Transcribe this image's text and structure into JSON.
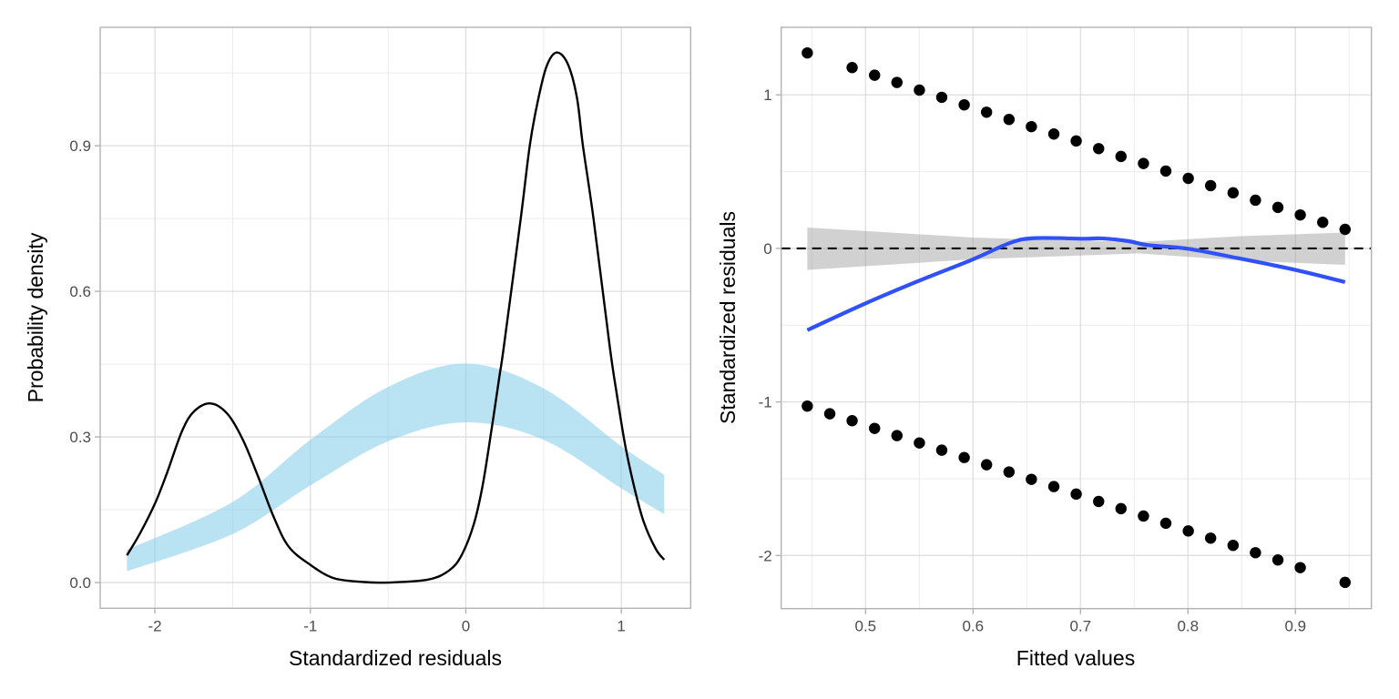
{
  "chart_data": [
    {
      "type": "line",
      "xlabel": "Standardized residuals",
      "ylabel": "Probability density",
      "xlim": [
        -2.352,
        1.446
      ],
      "ylim": [
        -0.053,
        1.144
      ],
      "x_ticks": [
        -2,
        -1,
        0,
        1
      ],
      "x_tick_labels": [
        "-2",
        "-1",
        "0",
        "1"
      ],
      "y_ticks": [
        0.0,
        0.3,
        0.6,
        0.9
      ],
      "y_tick_labels": [
        "0.0",
        "0.3",
        "0.6",
        "0.9"
      ],
      "grid": true,
      "colors": {
        "density": "#000000",
        "band": "#87CEEB"
      },
      "density": {
        "x": [
          -2.18,
          -2.098,
          -2.0,
          -1.923,
          -1.825,
          -1.747,
          -1.64,
          -1.532,
          -1.434,
          -1.337,
          -1.239,
          -1.142,
          -1.005,
          -0.849,
          -0.653,
          -0.5,
          -0.243,
          -0.107,
          -0.028,
          0.05,
          0.108,
          0.167,
          0.216,
          0.245,
          0.353,
          0.411,
          0.46,
          0.518,
          0.583,
          0.655,
          0.714,
          0.753,
          0.821,
          0.925,
          0.968,
          1.026,
          1.085,
          1.144,
          1.222,
          1.276
        ],
        "y": [
          0.056,
          0.1,
          0.1625,
          0.225,
          0.3125,
          0.353,
          0.369,
          0.347,
          0.294,
          0.219,
          0.1375,
          0.075,
          0.0375,
          0.009,
          0.001,
          0.0,
          0.006,
          0.025,
          0.056,
          0.119,
          0.2,
          0.319,
          0.425,
          0.4875,
          0.75,
          0.9,
          0.9875,
          1.0625,
          1.092,
          1.069,
          1.0,
          0.9,
          0.75,
          0.4875,
          0.394,
          0.281,
          0.194,
          0.125,
          0.069,
          0.047
        ]
      },
      "band": {
        "x": [
          -2.18,
          -1.5,
          -1.0,
          -0.5,
          0.0,
          0.5,
          1.0,
          1.276
        ],
        "lower": [
          0.023,
          0.1,
          0.2,
          0.291,
          0.33,
          0.294,
          0.194,
          0.141
        ],
        "upper": [
          0.0675,
          0.166,
          0.294,
          0.403,
          0.451,
          0.4,
          0.281,
          0.222
        ]
      }
    },
    {
      "type": "scatter",
      "xlabel": "Fitted values",
      "ylabel": "Standardized residuals",
      "xlim": [
        0.4215,
        0.9707
      ],
      "ylim": [
        -2.346,
        1.44
      ],
      "x_ticks": [
        0.5,
        0.6,
        0.7,
        0.8,
        0.9
      ],
      "x_tick_labels": [
        "0.5",
        "0.6",
        "0.7",
        "0.8",
        "0.9"
      ],
      "y_ticks": [
        -2,
        -1,
        0,
        1
      ],
      "y_tick_labels": [
        "-2",
        "-1",
        "0",
        "1"
      ],
      "grid": true,
      "reference_line": {
        "y": 0,
        "style": "dashed",
        "color": "#000000"
      },
      "colors": {
        "points": "#000000",
        "smooth": "#3050F8",
        "band": "#cccccc"
      },
      "points": {
        "x": [
          0.4458,
          0.4875,
          0.5084,
          0.5292,
          0.5501,
          0.5709,
          0.5918,
          0.6126,
          0.6335,
          0.6543,
          0.6752,
          0.696,
          0.7169,
          0.7377,
          0.7586,
          0.7794,
          0.8003,
          0.8211,
          0.842,
          0.8628,
          0.8837,
          0.9045,
          0.9254,
          0.9462,
          0.4458,
          0.4667,
          0.4875,
          0.5084,
          0.5292,
          0.5501,
          0.5709,
          0.5918,
          0.6126,
          0.6335,
          0.6543,
          0.6752,
          0.696,
          0.7169,
          0.7377,
          0.7586,
          0.7794,
          0.8003,
          0.8211,
          0.842,
          0.8628,
          0.8837,
          0.9045,
          0.9462
        ],
        "y": [
          1.273,
          1.178,
          1.128,
          1.081,
          1.031,
          0.984,
          0.935,
          0.887,
          0.84,
          0.793,
          0.745,
          0.7,
          0.65,
          0.599,
          0.553,
          0.504,
          0.456,
          0.409,
          0.362,
          0.314,
          0.267,
          0.218,
          0.17,
          0.124,
          -1.027,
          -1.077,
          -1.122,
          -1.172,
          -1.219,
          -1.267,
          -1.314,
          -1.362,
          -1.409,
          -1.456,
          -1.504,
          -1.551,
          -1.6,
          -1.648,
          -1.695,
          -1.743,
          -1.79,
          -1.84,
          -1.887,
          -1.934,
          -1.982,
          -2.029,
          -2.079,
          -2.175
        ]
      },
      "smooth": {
        "x": [
          0.4458,
          0.5,
          0.55,
          0.6,
          0.635,
          0.658,
          0.703,
          0.72,
          0.745,
          0.762,
          0.8,
          0.849,
          0.9,
          0.9462
        ],
        "y": [
          -0.532,
          -0.358,
          -0.21,
          -0.071,
          0.037,
          0.067,
          0.063,
          0.065,
          0.047,
          0.022,
          -0.002,
          -0.067,
          -0.14,
          -0.219
        ]
      },
      "band": {
        "x": [
          0.4458,
          0.6,
          0.7,
          0.754,
          0.85,
          0.9462
        ],
        "lower": [
          -0.14,
          -0.071,
          -0.046,
          -0.032,
          -0.08,
          -0.107
        ],
        "upper": [
          0.136,
          0.071,
          0.05,
          0.042,
          0.08,
          0.103
        ]
      }
    }
  ]
}
